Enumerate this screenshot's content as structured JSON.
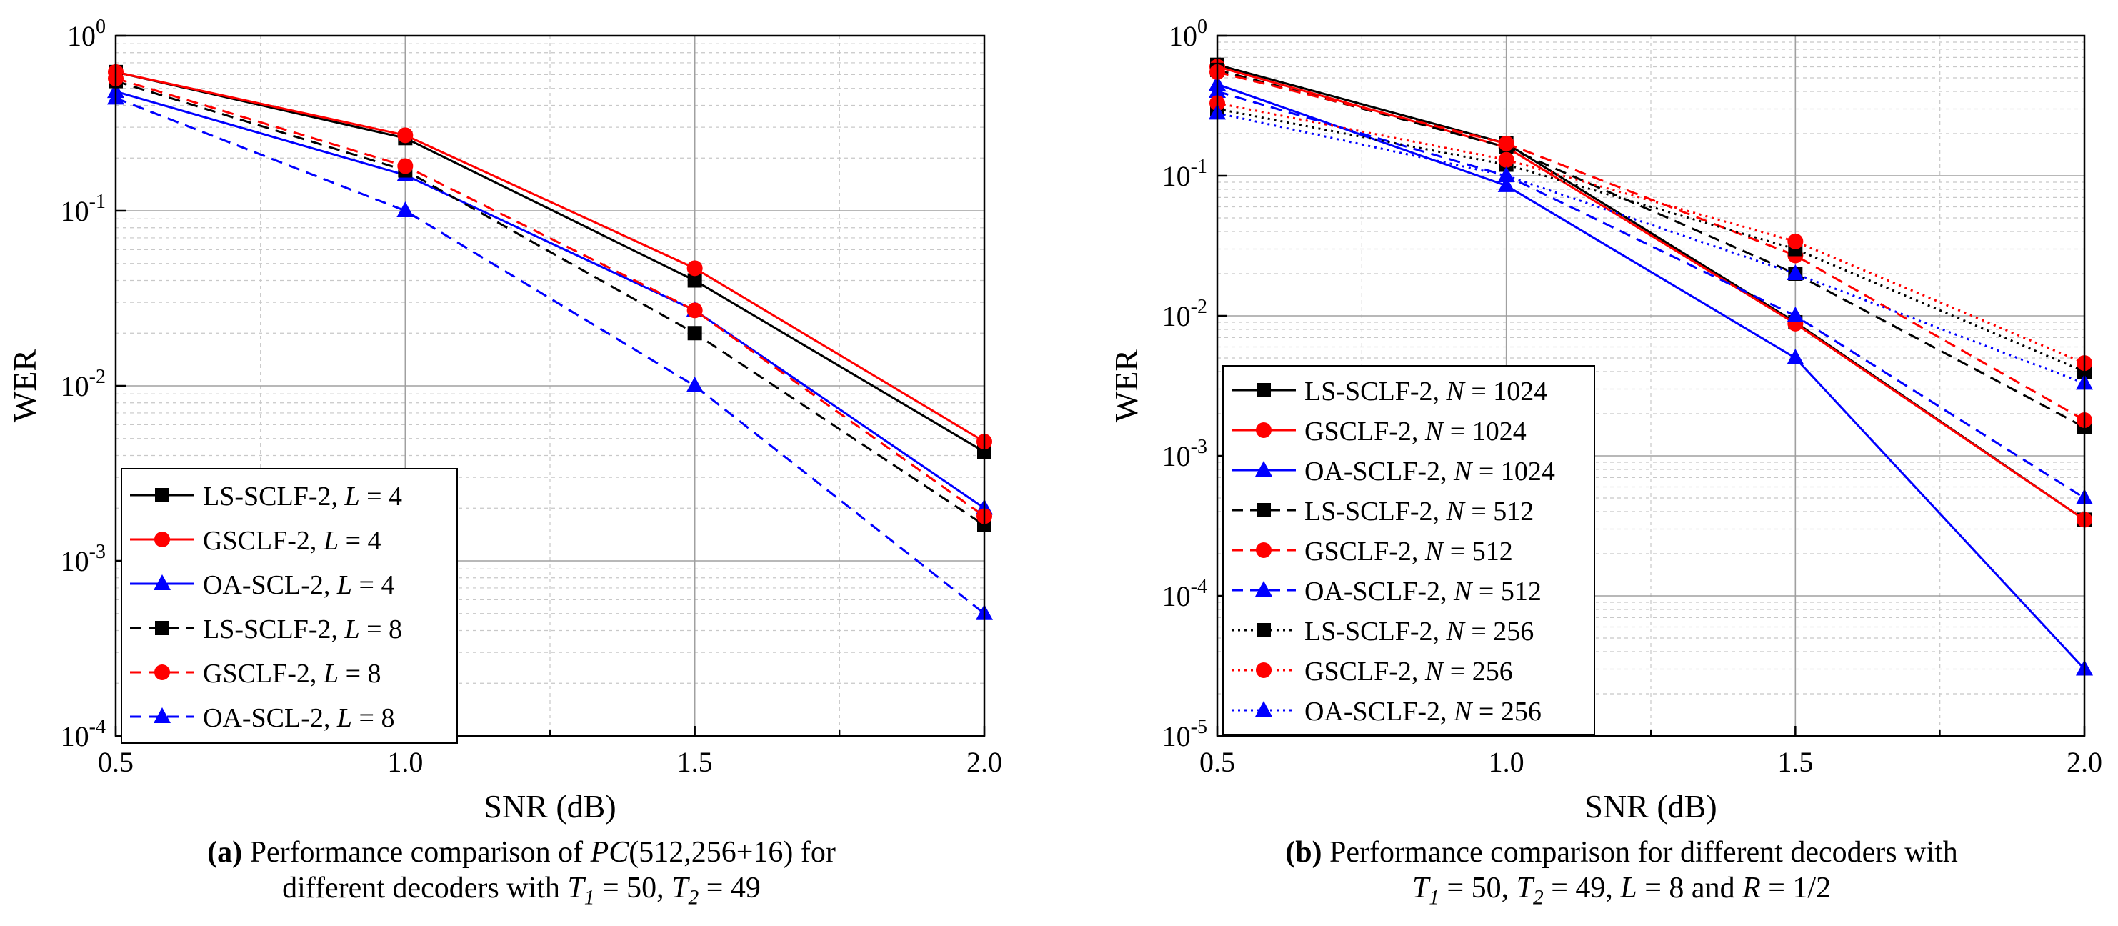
{
  "chart_data": [
    {
      "id": "a",
      "type": "line",
      "x_scale": "linear",
      "y_scale": "log",
      "xlim": [
        0.5,
        2.0
      ],
      "ylim": [
        0.0001,
        1
      ],
      "xticks": [
        "0.5",
        "1.0",
        "1.5",
        "2.0"
      ],
      "yticks": [
        "10^0",
        "10^-1",
        "10^-2",
        "10^-3",
        "10^-4"
      ],
      "xlabel": "SNR (dB)",
      "ylabel": "WER",
      "grid": true,
      "legend_position": "bottom-left",
      "series": [
        {
          "name": "LS-SCLF-2, ",
          "param": "L",
          "eq": " = ",
          "pval": "4",
          "color": "#000000",
          "dash": "solid",
          "marker": "square",
          "x": [
            0.5,
            1.0,
            1.5,
            2.0
          ],
          "y": [
            0.62,
            0.26,
            0.04,
            0.0042
          ]
        },
        {
          "name": "GSCLF-2, ",
          "param": "L",
          "eq": " = ",
          "pval": "4",
          "color": "#ff0000",
          "dash": "solid",
          "marker": "circle",
          "x": [
            0.5,
            1.0,
            1.5,
            2.0
          ],
          "y": [
            0.62,
            0.27,
            0.047,
            0.0048
          ]
        },
        {
          "name": "OA-SCL-2, ",
          "param": "L",
          "eq": " = ",
          "pval": "4",
          "color": "#0000ff",
          "dash": "solid",
          "marker": "triangle",
          "x": [
            0.5,
            1.0,
            1.5,
            2.0
          ],
          "y": [
            0.48,
            0.16,
            0.027,
            0.002
          ]
        },
        {
          "name": "LS-SCLF-2, ",
          "param": "L",
          "eq": " = ",
          "pval": "8",
          "color": "#000000",
          "dash": "dashed",
          "marker": "square",
          "x": [
            0.5,
            1.0,
            1.5,
            2.0
          ],
          "y": [
            0.55,
            0.17,
            0.02,
            0.0016
          ]
        },
        {
          "name": "GSCLF-2, ",
          "param": "L",
          "eq": " = ",
          "pval": "8",
          "color": "#ff0000",
          "dash": "dashed",
          "marker": "circle",
          "x": [
            0.5,
            1.0,
            1.5,
            2.0
          ],
          "y": [
            0.57,
            0.18,
            0.027,
            0.0018
          ]
        },
        {
          "name": "OA-SCL-2, ",
          "param": "L",
          "eq": " = ",
          "pval": "8",
          "color": "#0000ff",
          "dash": "dashed",
          "marker": "triangle",
          "x": [
            0.5,
            1.0,
            1.5,
            2.0
          ],
          "y": [
            0.44,
            0.1,
            0.01,
            0.0005
          ]
        }
      ]
    },
    {
      "id": "b",
      "type": "line",
      "x_scale": "linear",
      "y_scale": "log",
      "xlim": [
        0.5,
        2.0
      ],
      "ylim": [
        1e-05,
        1
      ],
      "xticks": [
        "0.5",
        "1.0",
        "1.5",
        "2.0"
      ],
      "yticks": [
        "10^0",
        "10^-1",
        "10^-2",
        "10^-3",
        "10^-4",
        "10^-5"
      ],
      "xlabel": "SNR (dB)",
      "ylabel": "WER",
      "grid": true,
      "legend_position": "bottom-left",
      "series": [
        {
          "name": "LS-SCLF-2, ",
          "param": "N",
          "eq": " = ",
          "pval": "1024",
          "color": "#000000",
          "dash": "solid",
          "marker": "square",
          "x": [
            0.5,
            1.0,
            1.5,
            2.0
          ],
          "y": [
            0.62,
            0.17,
            0.009,
            0.00035
          ]
        },
        {
          "name": "GSCLF-2, ",
          "param": "N",
          "eq": " = ",
          "pval": "1024",
          "color": "#ff0000",
          "dash": "solid",
          "marker": "circle",
          "x": [
            0.5,
            1.0,
            1.5,
            2.0
          ],
          "y": [
            0.6,
            0.16,
            0.0088,
            0.00035
          ]
        },
        {
          "name": "OA-SCLF-2, ",
          "param": "N",
          "eq": " = ",
          "pval": "1024",
          "color": "#0000ff",
          "dash": "solid",
          "marker": "triangle",
          "x": [
            0.5,
            1.0,
            1.5,
            2.0
          ],
          "y": [
            0.45,
            0.085,
            0.005,
            3e-05
          ]
        },
        {
          "name": "LS-SCLF-2, ",
          "param": "N",
          "eq": " = ",
          "pval": "512",
          "color": "#000000",
          "dash": "dashed",
          "marker": "square",
          "x": [
            0.5,
            1.0,
            1.5,
            2.0
          ],
          "y": [
            0.57,
            0.16,
            0.02,
            0.0016
          ]
        },
        {
          "name": "GSCLF-2, ",
          "param": "N",
          "eq": " = ",
          "pval": "512",
          "color": "#ff0000",
          "dash": "dashed",
          "marker": "circle",
          "x": [
            0.5,
            1.0,
            1.5,
            2.0
          ],
          "y": [
            0.55,
            0.17,
            0.027,
            0.0018
          ]
        },
        {
          "name": "OA-SCLF-2, ",
          "param": "N",
          "eq": " = ",
          "pval": "512",
          "color": "#0000ff",
          "dash": "dashed",
          "marker": "triangle",
          "x": [
            0.5,
            1.0,
            1.5,
            2.0
          ],
          "y": [
            0.4,
            0.1,
            0.01,
            0.0005
          ]
        },
        {
          "name": "LS-SCLF-2, ",
          "param": "N",
          "eq": " = ",
          "pval": "256",
          "color": "#000000",
          "dash": "dotted",
          "marker": "square",
          "x": [
            0.5,
            1.0,
            1.5,
            2.0
          ],
          "y": [
            0.3,
            0.12,
            0.03,
            0.004
          ]
        },
        {
          "name": "GSCLF-2, ",
          "param": "N",
          "eq": " = ",
          "pval": "256",
          "color": "#ff0000",
          "dash": "dotted",
          "marker": "circle",
          "x": [
            0.5,
            1.0,
            1.5,
            2.0
          ],
          "y": [
            0.33,
            0.13,
            0.034,
            0.0046
          ]
        },
        {
          "name": "OA-SCLF-2, ",
          "param": "N",
          "eq": " = ",
          "pval": "256",
          "color": "#0000ff",
          "dash": "dotted",
          "marker": "triangle",
          "x": [
            0.5,
            1.0,
            1.5,
            2.0
          ],
          "y": [
            0.28,
            0.1,
            0.02,
            0.0033
          ]
        }
      ]
    }
  ],
  "captions": {
    "a": {
      "label": "(a)",
      "line1_pre": " Performance comparison of ",
      "line1_math": "PC",
      "line1_post": "(512,256+16) for",
      "line2_pre": "different decoders with ",
      "t1_sym": "T",
      "t1_sub": "1",
      "t1_val": " = 50, ",
      "t2_sym": "T",
      "t2_sub": "2",
      "t2_val": " = 49"
    },
    "b": {
      "label": "(b)",
      "line1_post": " Performance comparison for different decoders with",
      "t1_sym": "T",
      "t1_sub": "1",
      "t1_val": " = 50, ",
      "t2_sym": "T",
      "t2_sub": "2",
      "t2_val": " = 49, ",
      "l_sym": "L",
      "l_val": " = 8 and ",
      "r_sym": "R",
      "r_val": " = 1/2"
    }
  }
}
